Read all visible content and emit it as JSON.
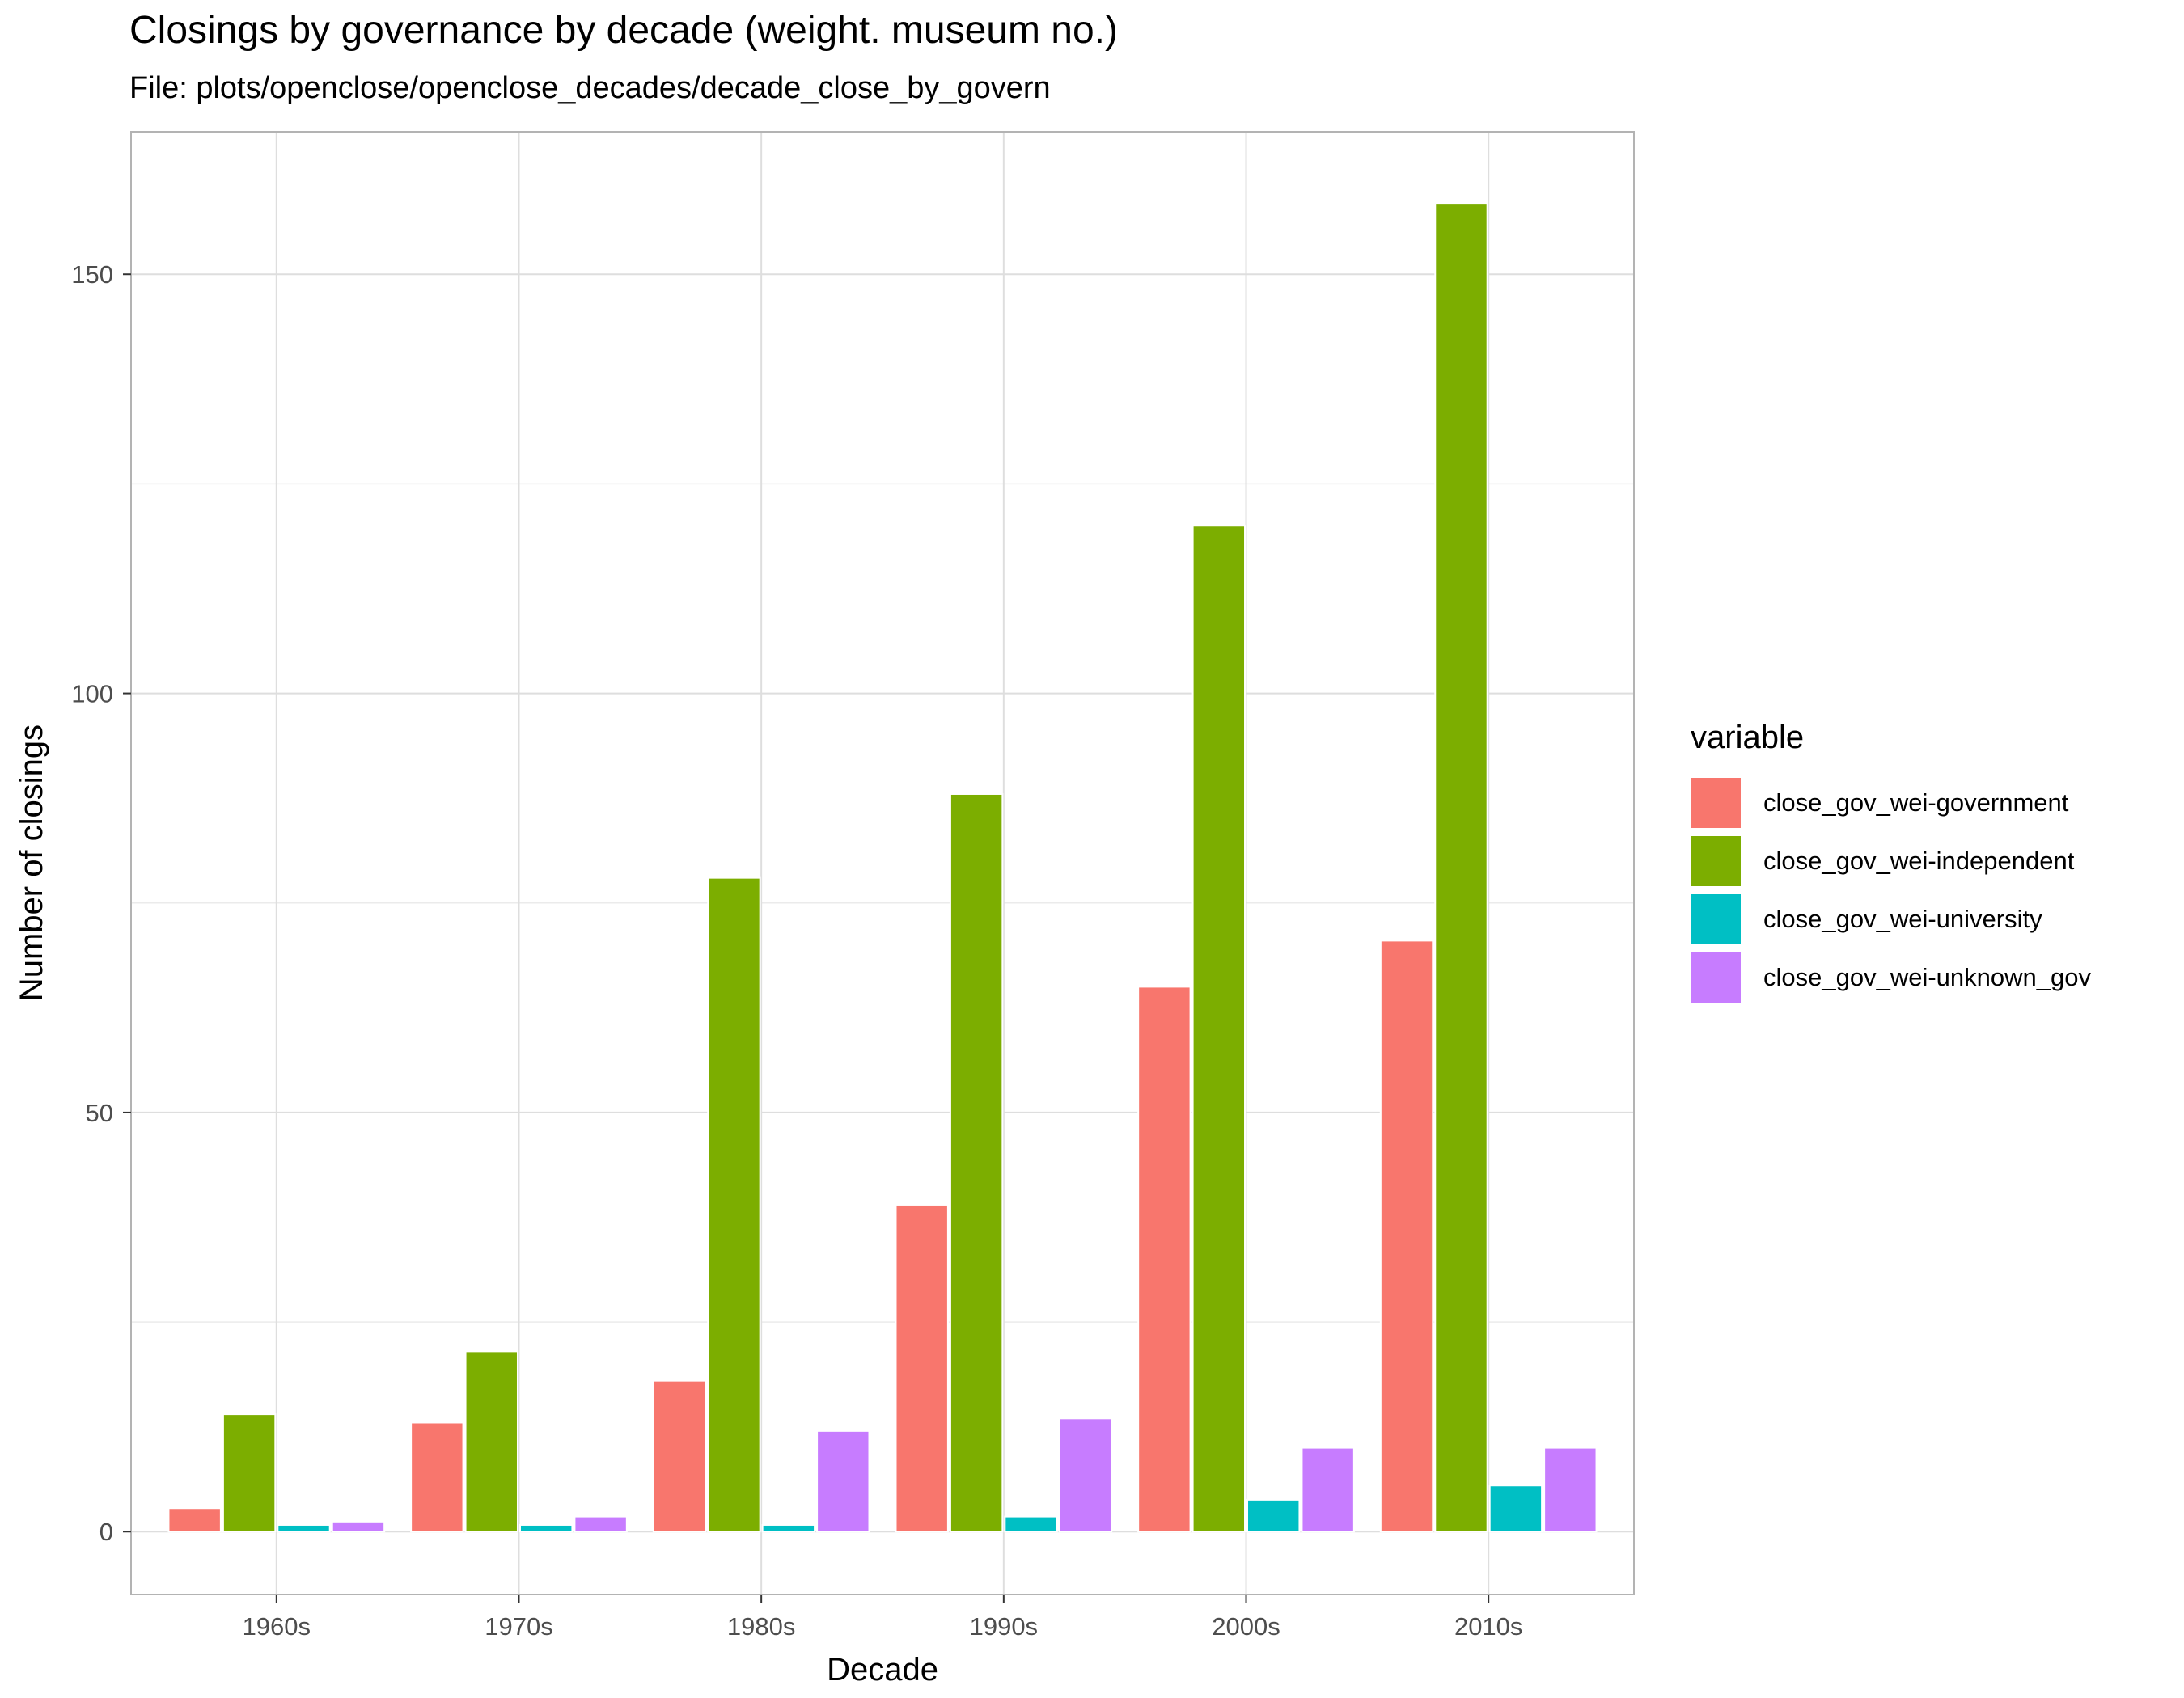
{
  "chart_data": {
    "type": "bar",
    "title": "Closings by governance by decade (weight. museum no.)",
    "subtitle": "File: plots/openclose/openclose_decades/decade_close_by_govern",
    "xlabel": "Decade",
    "ylabel": "Number of closings",
    "categories": [
      "1960s",
      "1970s",
      "1980s",
      "1990s",
      "2000s",
      "2010s"
    ],
    "ylim": [
      -7.5,
      167
    ],
    "yticks": [
      0,
      50,
      100,
      150
    ],
    "grid": true,
    "legend": {
      "title": "variable",
      "position": "right"
    },
    "series": [
      {
        "name": "close_gov_wei-government",
        "color": "#F8766D",
        "values": [
          2.8,
          13,
          18,
          39,
          65,
          70.5
        ]
      },
      {
        "name": "close_gov_wei-independent",
        "color": "#7CAE00",
        "values": [
          14,
          21.5,
          78,
          88,
          120,
          158.5
        ]
      },
      {
        "name": "close_gov_wei-university",
        "color": "#00BFC4",
        "values": [
          0.8,
          0.8,
          0.8,
          1.8,
          3.8,
          5.5
        ]
      },
      {
        "name": "close_gov_wei-unknown_gov",
        "color": "#C77CFF",
        "values": [
          1.2,
          1.8,
          12,
          13.5,
          10,
          10
        ]
      }
    ]
  }
}
